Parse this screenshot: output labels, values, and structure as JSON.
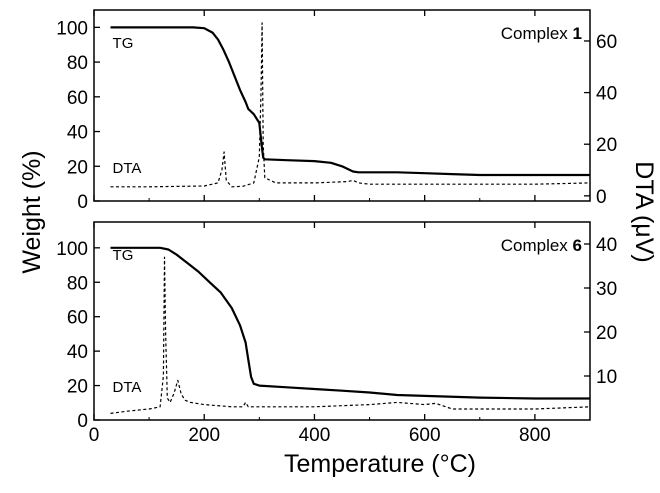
{
  "figure": {
    "shared_xlabel": "Temperature (°C)",
    "shared_ylabel_left": "Weight (%)",
    "shared_ylabel_right": "DTA (μV)"
  },
  "chart_data": [
    {
      "type": "line",
      "panel_label_text": "Complex ",
      "panel_label_number": "1",
      "xlim": [
        0,
        900
      ],
      "ylim": [
        0,
        110
      ],
      "y2lim": [
        -2,
        72
      ],
      "x_ticks": [
        0,
        200,
        400,
        600,
        800
      ],
      "y_ticks": [
        0,
        20,
        40,
        60,
        80,
        100
      ],
      "y2_ticks": [
        0,
        20,
        40,
        60
      ],
      "show_x_tick_labels": false,
      "series": [
        {
          "name": "TG",
          "axis": "left",
          "style": "solid",
          "x": [
            30,
            180,
            200,
            215,
            225,
            235,
            245,
            255,
            265,
            275,
            280,
            290,
            300,
            305,
            307,
            310,
            350,
            400,
            430,
            450,
            470,
            480,
            550,
            600,
            650,
            700,
            800,
            900
          ],
          "y": [
            100,
            100,
            99.5,
            97,
            93,
            87,
            80,
            72,
            64,
            57,
            53,
            50,
            45,
            30,
            25,
            24,
            23.5,
            23,
            22,
            20,
            17,
            16.5,
            16.5,
            16,
            15.5,
            15,
            15,
            15
          ]
        },
        {
          "name": "DTA",
          "axis": "right",
          "style": "dashed",
          "x": [
            30,
            100,
            200,
            225,
            232,
            236,
            240,
            250,
            270,
            290,
            300,
            303,
            305,
            307,
            310,
            330,
            400,
            460,
            470,
            480,
            500,
            600,
            700,
            800,
            900
          ],
          "y": [
            3.5,
            3.5,
            3.8,
            5,
            10,
            17,
            6,
            3.5,
            3.7,
            5,
            15,
            40,
            67,
            20,
            7,
            5,
            5,
            5.5,
            6,
            5,
            4.5,
            4.5,
            4.5,
            4.5,
            5
          ]
        }
      ]
    },
    {
      "type": "line",
      "panel_label_text": "Complex ",
      "panel_label_number": "6",
      "xlim": [
        0,
        900
      ],
      "ylim": [
        0,
        115
      ],
      "y2lim": [
        0,
        45
      ],
      "x_ticks": [
        0,
        200,
        400,
        600,
        800
      ],
      "x_tick_labels": [
        "0",
        "200",
        "400",
        "600",
        "800"
      ],
      "y_ticks": [
        0,
        20,
        40,
        60,
        80,
        100
      ],
      "y2_ticks": [
        10,
        20,
        30,
        40
      ],
      "show_x_tick_labels": true,
      "series": [
        {
          "name": "TG",
          "axis": "left",
          "style": "solid",
          "x": [
            30,
            120,
            135,
            150,
            170,
            190,
            210,
            230,
            250,
            265,
            275,
            280,
            285,
            290,
            300,
            350,
            400,
            450,
            500,
            550,
            600,
            700,
            800,
            900
          ],
          "y": [
            100,
            100,
            99,
            96,
            91,
            86,
            80,
            74,
            65,
            55,
            45,
            35,
            25,
            21,
            20,
            19,
            18,
            17,
            16,
            14.5,
            14,
            13,
            12.5,
            12.5
          ]
        },
        {
          "name": "DTA",
          "axis": "right",
          "style": "dashed",
          "x": [
            30,
            60,
            100,
            120,
            126,
            128,
            130,
            133,
            138,
            145,
            152,
            158,
            165,
            175,
            200,
            250,
            270,
            275,
            280,
            300,
            400,
            500,
            550,
            600,
            620,
            650,
            700,
            800,
            900
          ],
          "y": [
            1.5,
            2,
            2.5,
            3,
            10,
            37,
            20,
            5,
            4,
            6,
            9,
            6,
            4.5,
            4,
            3.5,
            3,
            3,
            4,
            3,
            3,
            3,
            3.5,
            4,
            3.5,
            3.8,
            2.5,
            2.5,
            2.5,
            3
          ]
        }
      ]
    }
  ]
}
